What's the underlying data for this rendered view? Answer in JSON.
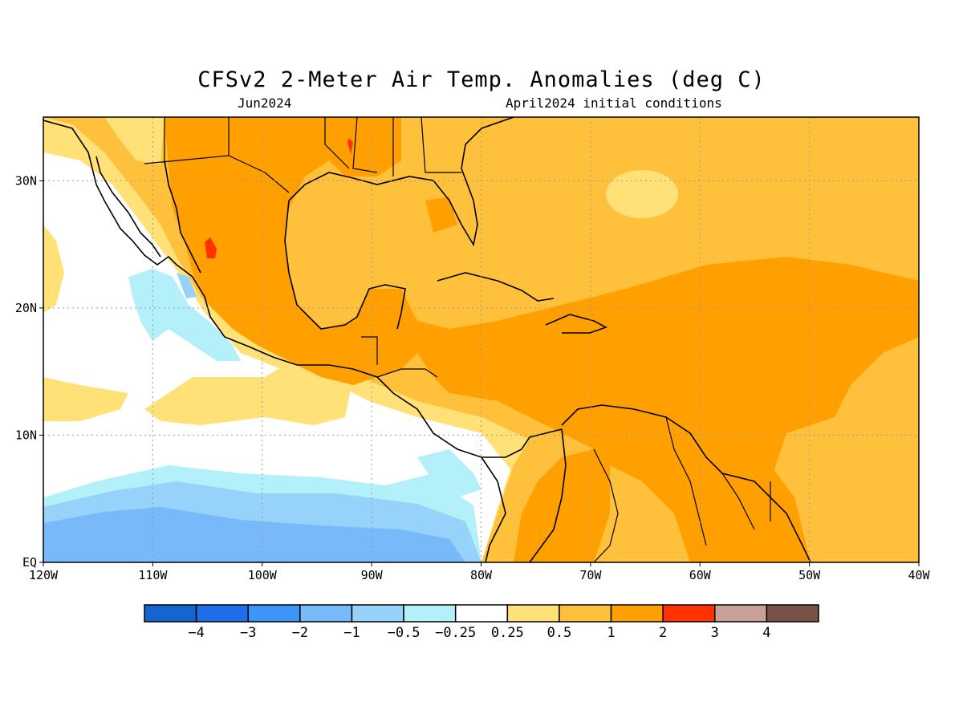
{
  "title": "CFSv2 2-Meter Air Temp. Anomalies (deg C)",
  "subtitle_left": "Jun2024",
  "subtitle_right": "April2024 initial conditions",
  "map": {
    "lon_range": [
      -120,
      -40
    ],
    "lat_range": [
      0,
      35
    ],
    "x_ticks": [
      {
        "lon": -120,
        "label": "120W"
      },
      {
        "lon": -110,
        "label": "110W"
      },
      {
        "lon": -100,
        "label": "100W"
      },
      {
        "lon": -90,
        "label": "90W"
      },
      {
        "lon": -80,
        "label": "80W"
      },
      {
        "lon": -70,
        "label": "70W"
      },
      {
        "lon": -60,
        "label": "60W"
      },
      {
        "lon": -50,
        "label": "50W"
      },
      {
        "lon": -40,
        "label": "40W"
      }
    ],
    "y_ticks": [
      {
        "lat": 0,
        "label": "EQ"
      },
      {
        "lat": 10,
        "label": "10N"
      },
      {
        "lat": 20,
        "label": "20N"
      },
      {
        "lat": 30,
        "label": "30N"
      }
    ],
    "grid": "dotted"
  },
  "colorbar": {
    "colors": [
      "#1464d2",
      "#1e6eeb",
      "#3c96f5",
      "#78b9fa",
      "#96d2fa",
      "#b4f0fa",
      "#ffffff",
      "#ffe178",
      "#ffc03c",
      "#ffa000",
      "#ff3200",
      "#c8a096",
      "#785046"
    ],
    "labels": [
      "-4",
      "-3",
      "-2",
      "-1",
      "-0.5",
      "-0.25",
      "0.25",
      "0.5",
      "1",
      "2",
      "3",
      "4"
    ]
  }
}
